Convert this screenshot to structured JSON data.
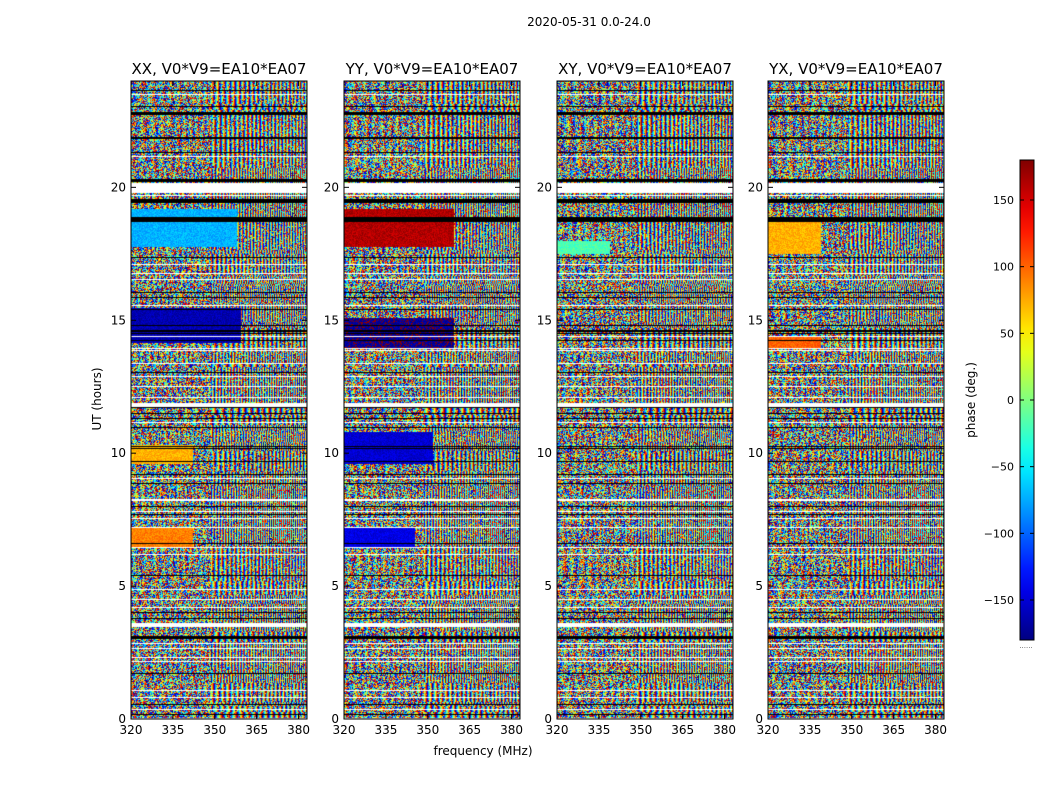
{
  "figure": {
    "suptitle": "2020-05-31 0.0-24.0",
    "xlabel": "frequency (MHz)",
    "ylabel": "UT (hours)",
    "colorbar_label": "phase (deg.)",
    "colorbar_overflow_dots": "......"
  },
  "chart_data": [
    {
      "type": "heatmap",
      "title": "XX, V0*V9=EA10*EA07",
      "xlabel": "frequency (MHz)",
      "ylabel": "UT (hours)",
      "xlim": [
        320,
        383
      ],
      "ylim": [
        0,
        24
      ],
      "xticks": [
        320,
        335,
        350,
        365,
        380
      ],
      "xtick_labels": [
        "320",
        "335",
        "350",
        "365",
        "380"
      ],
      "yticks": [
        0,
        5,
        10,
        15,
        20
      ],
      "ytick_labels": [
        "0",
        "5",
        "10",
        "15",
        "20"
      ],
      "value_label": "phase (deg.)",
      "vlim": [
        -180,
        180
      ],
      "colormap": "jet"
    },
    {
      "type": "heatmap",
      "title": "YY, V0*V9=EA10*EA07",
      "xlabel": "frequency (MHz)",
      "ylabel": "UT (hours)",
      "xlim": [
        320,
        383
      ],
      "ylim": [
        0,
        24
      ],
      "xticks": [
        320,
        335,
        350,
        365,
        380
      ],
      "xtick_labels": [
        "320",
        "335",
        "350",
        "365",
        "380"
      ],
      "yticks": [
        0,
        5,
        10,
        15,
        20
      ],
      "ytick_labels": [
        "0",
        "5",
        "10",
        "15",
        "20"
      ],
      "value_label": "phase (deg.)",
      "vlim": [
        -180,
        180
      ],
      "colormap": "jet"
    },
    {
      "type": "heatmap",
      "title": "XY, V0*V9=EA10*EA07",
      "xlabel": "frequency (MHz)",
      "ylabel": "UT (hours)",
      "xlim": [
        320,
        383
      ],
      "ylim": [
        0,
        24
      ],
      "xticks": [
        320,
        335,
        350,
        365,
        380
      ],
      "xtick_labels": [
        "320",
        "335",
        "350",
        "365",
        "380"
      ],
      "yticks": [
        0,
        5,
        10,
        15,
        20
      ],
      "ytick_labels": [
        "0",
        "5",
        "10",
        "15",
        "20"
      ],
      "value_label": "phase (deg.)",
      "vlim": [
        -180,
        180
      ],
      "colormap": "jet"
    },
    {
      "type": "heatmap",
      "title": "YX, V0*V9=EA10*EA07",
      "xlabel": "frequency (MHz)",
      "ylabel": "UT (hours)",
      "xlim": [
        320,
        383
      ],
      "ylim": [
        0,
        24
      ],
      "xticks": [
        320,
        335,
        350,
        365,
        380
      ],
      "xtick_labels": [
        "320",
        "335",
        "350",
        "365",
        "380"
      ],
      "yticks": [
        0,
        5,
        10,
        15,
        20
      ],
      "ytick_labels": [
        "0",
        "5",
        "10",
        "15",
        "20"
      ],
      "value_label": "phase (deg.)",
      "vlim": [
        -180,
        180
      ],
      "colormap": "jet"
    }
  ],
  "colorbar": {
    "range": [
      -180,
      180
    ],
    "ticks": [
      150,
      100,
      50,
      0,
      -50,
      -100,
      -150
    ],
    "tick_labels": [
      "150",
      "100",
      "50",
      "0",
      "−50",
      "−100",
      "−150"
    ]
  }
}
